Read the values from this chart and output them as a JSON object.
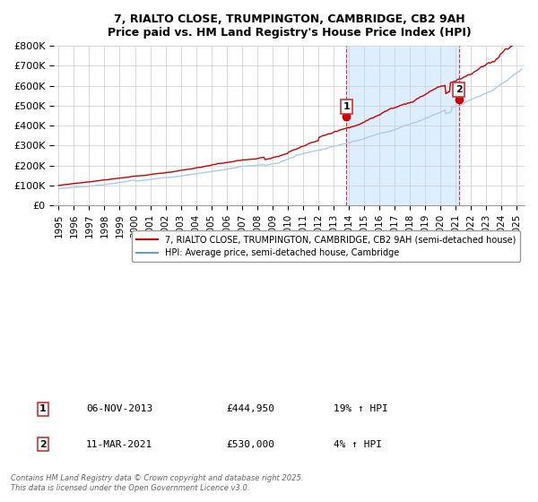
{
  "title_line1": "7, RIALTO CLOSE, TRUMPINGTON, CAMBRIDGE, CB2 9AH",
  "title_line2": "Price paid vs. HM Land Registry's House Price Index (HPI)",
  "xlabel": "",
  "ylabel": "",
  "ylim": [
    0,
    800000
  ],
  "xlim_start": 1995.0,
  "xlim_end": 2025.5,
  "yticks": [
    0,
    100000,
    200000,
    300000,
    400000,
    500000,
    600000,
    700000,
    800000
  ],
  "ytick_labels": [
    "£0",
    "£100K",
    "£200K",
    "£300K",
    "£400K",
    "£500K",
    "£600K",
    "£700K",
    "£800K"
  ],
  "xtick_years": [
    1995,
    1996,
    1997,
    1998,
    1999,
    2000,
    2001,
    2002,
    2003,
    2004,
    2005,
    2006,
    2007,
    2008,
    2009,
    2010,
    2011,
    2012,
    2013,
    2014,
    2015,
    2016,
    2017,
    2018,
    2019,
    2020,
    2021,
    2022,
    2023,
    2024,
    2025
  ],
  "red_line_color": "#cc0000",
  "blue_line_color": "#aaccee",
  "blue_line_color_dark": "#6699cc",
  "marker_color": "#cc0000",
  "vline_color": "#cc3333",
  "shade_color": "#ddeeff",
  "background_color": "#ffffff",
  "grid_color": "#cccccc",
  "legend_label_red": "7, RIALTO CLOSE, TRUMPINGTON, CAMBRIDGE, CB2 9AH (semi-detached house)",
  "legend_label_blue": "HPI: Average price, semi-detached house, Cambridge",
  "sale1_x": 2013.846,
  "sale1_y": 444950,
  "sale1_label": "1",
  "sale1_date": "06-NOV-2013",
  "sale1_price": "£444,950",
  "sale1_hpi": "19% ↑ HPI",
  "sale2_x": 2021.19,
  "sale2_y": 530000,
  "sale2_label": "2",
  "sale2_date": "11-MAR-2021",
  "sale2_price": "£530,000",
  "sale2_hpi": "4% ↑ HPI",
  "footer_text": "Contains HM Land Registry data © Crown copyright and database right 2025.\nThis data is licensed under the Open Government Licence v3.0."
}
